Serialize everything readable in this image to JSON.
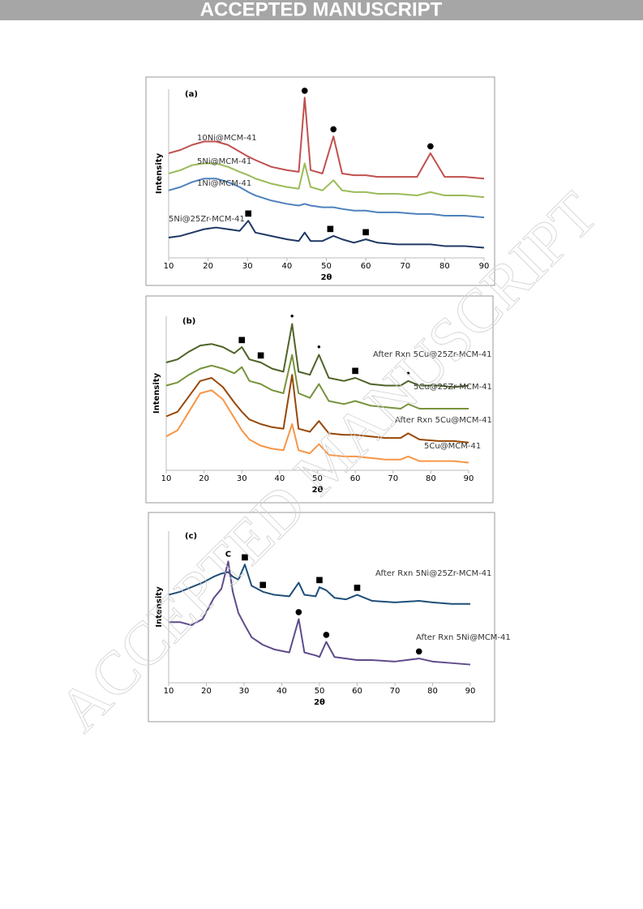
{
  "header": {
    "banner": "ACCEPTED MANUSCRIPT"
  },
  "watermark": "ACCEPTED MANUSCRIPT",
  "chart_data": [
    {
      "type": "line",
      "panel_label": "(a)",
      "x_label": "2θ",
      "y_label": "Intensity",
      "x": [
        10,
        13,
        16,
        19,
        22,
        25,
        28,
        30.2,
        32,
        36,
        40,
        43,
        44.5,
        46,
        49,
        51.8,
        54,
        57,
        60,
        63,
        68,
        73,
        76.4,
        80,
        85,
        90
      ],
      "xlim": [
        10,
        90
      ],
      "xticks": [
        10,
        20,
        30,
        40,
        50,
        60,
        70,
        80,
        90
      ],
      "ylim": [
        0,
        100
      ],
      "series": [
        {
          "name": "10Ni@MCM-41",
          "color": "#c0504d",
          "values": [
            62,
            64,
            67,
            69,
            69,
            67,
            63,
            60,
            58,
            54,
            52,
            51,
            95,
            52,
            50,
            72,
            50,
            49,
            49,
            48,
            48,
            48,
            62,
            48,
            48,
            47
          ]
        },
        {
          "name": "5Ni@MCM-41",
          "color": "#9bbb59",
          "values": [
            50,
            52,
            55,
            56,
            56,
            54,
            51,
            49,
            47,
            44,
            42,
            41,
            56,
            42,
            40,
            46,
            40,
            39,
            39,
            38,
            38,
            37,
            39,
            37,
            37,
            36
          ]
        },
        {
          "name": "1Ni@MCM-41",
          "color": "#4f81bd",
          "values": [
            40,
            42,
            45,
            47,
            47,
            45,
            42,
            39,
            37,
            34,
            32,
            31,
            32,
            31,
            30,
            30,
            29,
            28,
            28,
            27,
            27,
            26,
            26,
            25,
            25,
            24
          ]
        },
        {
          "name": "5Ni@25Zr-MCM-41",
          "color": "#1f3864",
          "values": [
            12,
            13,
            15,
            17,
            18,
            17,
            16,
            22,
            15,
            13,
            11,
            10,
            15,
            10,
            10,
            13,
            11,
            9,
            11,
            9,
            8,
            8,
            8,
            7,
            7,
            6
          ]
        }
      ],
      "annotations": [
        {
          "text": "●",
          "x": 44.5,
          "y": 95
        },
        {
          "text": "●",
          "x": 51.8,
          "y": 72
        },
        {
          "text": "●",
          "x": 76.4,
          "y": 62
        },
        {
          "text": "■",
          "x": 30.2,
          "y": 22
        },
        {
          "text": "■",
          "x": 51,
          "y": 13
        },
        {
          "text": "■",
          "x": 60,
          "y": 11
        }
      ]
    },
    {
      "type": "line",
      "panel_label": "(b)",
      "x_label": "2θ",
      "y_label": "Intensity",
      "x": [
        10,
        13,
        16,
        19,
        22,
        25,
        28,
        30,
        32,
        35,
        38,
        41,
        43.3,
        45,
        48,
        50.4,
        53,
        57,
        60,
        64,
        68,
        72,
        74,
        77,
        82,
        86,
        90
      ],
      "xlim": [
        10,
        90
      ],
      "xticks": [
        10,
        20,
        30,
        40,
        50,
        60,
        70,
        80,
        90
      ],
      "ylim": [
        0,
        100
      ],
      "series": [
        {
          "name": "After Rxn 5Cu@25Zr-MCM-41",
          "color": "#4f6228",
          "values": [
            70,
            72,
            77,
            81,
            82,
            80,
            76,
            80,
            72,
            70,
            66,
            64,
            95,
            64,
            62,
            75,
            60,
            58,
            60,
            56,
            55,
            55,
            58,
            55,
            55,
            54,
            55
          ]
        },
        {
          "name": "5Cu@25Zr-MCM-41",
          "color": "#77933c",
          "values": [
            55,
            57,
            62,
            66,
            68,
            66,
            63,
            67,
            58,
            56,
            52,
            50,
            75,
            50,
            47,
            56,
            45,
            43,
            45,
            42,
            41,
            40,
            43,
            40,
            40,
            40,
            40
          ]
        },
        {
          "name": "After Rxn 5Cu@MCM-41",
          "color": "#984807",
          "values": [
            35,
            38,
            48,
            58,
            60,
            54,
            44,
            38,
            33,
            30,
            28,
            27,
            62,
            27,
            25,
            32,
            24,
            23,
            23,
            22,
            21,
            21,
            24,
            20,
            19,
            19,
            18
          ]
        },
        {
          "name": "5Cu@MCM-41",
          "color": "#f79646",
          "values": [
            22,
            26,
            38,
            50,
            52,
            46,
            34,
            26,
            20,
            16,
            14,
            13,
            30,
            13,
            11,
            17,
            10,
            9,
            9,
            8,
            7,
            7,
            9,
            6,
            6,
            6,
            5
          ]
        }
      ],
      "annotations": [
        {
          "text": "■",
          "x": 30,
          "y": 80
        },
        {
          "text": "■",
          "x": 35,
          "y": 70
        },
        {
          "text": "•",
          "x": 43.3,
          "y": 95
        },
        {
          "text": "•",
          "x": 50.4,
          "y": 75
        },
        {
          "text": "■",
          "x": 60,
          "y": 60
        },
        {
          "text": "•",
          "x": 74,
          "y": 58
        }
      ]
    },
    {
      "type": "line",
      "panel_label": "(c)",
      "x_label": "2θ",
      "y_label": "Intensity",
      "x": [
        10,
        13,
        16,
        19,
        22,
        24,
        25.8,
        27,
        28.5,
        30.2,
        32,
        35,
        38,
        42,
        44.5,
        46,
        49,
        50,
        51.8,
        54,
        57,
        60,
        64,
        70,
        76.4,
        80,
        85,
        90
      ],
      "xlim": [
        10,
        90
      ],
      "xticks": [
        10,
        20,
        30,
        40,
        50,
        60,
        70,
        80,
        90
      ],
      "ylim": [
        0,
        100
      ],
      "series": [
        {
          "name": "After Rxn 5Ni@25Zr-MCM-41",
          "color": "#1f4e79",
          "values": [
            58,
            60,
            63,
            66,
            70,
            72,
            73,
            70,
            68,
            78,
            64,
            60,
            58,
            57,
            66,
            58,
            57,
            63,
            61,
            56,
            55,
            58,
            54,
            53,
            54,
            53,
            52,
            52
          ]
        },
        {
          "name": "After Rxn 5Ni@MCM-41",
          "color": "#5f4b8b",
          "values": [
            40,
            40,
            38,
            42,
            56,
            62,
            80,
            60,
            46,
            38,
            30,
            25,
            22,
            20,
            42,
            20,
            18,
            17,
            27,
            17,
            16,
            15,
            15,
            14,
            16,
            14,
            13,
            12
          ]
        }
      ],
      "annotations": [
        {
          "text": "■",
          "x": 30.2,
          "y": 78
        },
        {
          "text": "■",
          "x": 35,
          "y": 60
        },
        {
          "text": "■",
          "x": 50,
          "y": 63
        },
        {
          "text": "■",
          "x": 60,
          "y": 58
        },
        {
          "text": "C",
          "x": 25.8,
          "y": 80
        },
        {
          "text": "●",
          "x": 44.5,
          "y": 42
        },
        {
          "text": "●",
          "x": 51.8,
          "y": 27
        },
        {
          "text": "●",
          "x": 76.4,
          "y": 16
        }
      ]
    }
  ]
}
